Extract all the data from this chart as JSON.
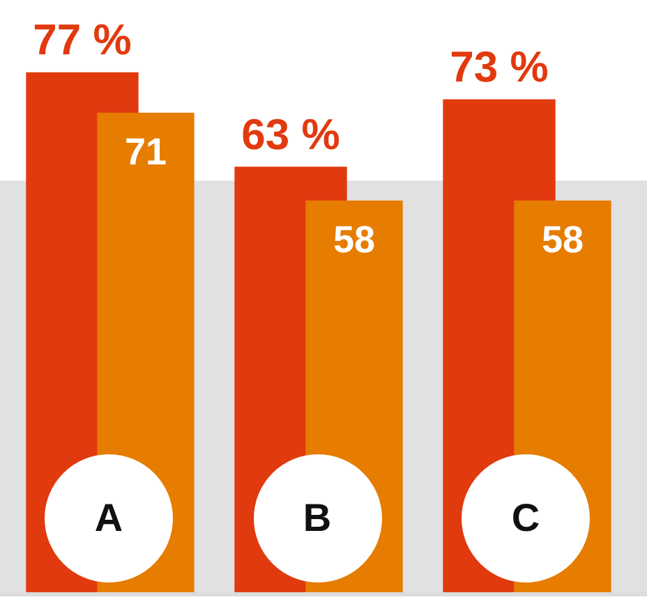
{
  "chart_data": {
    "type": "bar",
    "categories": [
      "A",
      "B",
      "C"
    ],
    "series": [
      {
        "color": "#e13a0f",
        "values": [
          77,
          63,
          73
        ],
        "value_labels": [
          "77 %",
          "63 %",
          "73 %"
        ]
      },
      {
        "color": "#e67c00",
        "values": [
          71,
          58,
          58
        ],
        "value_labels": [
          "71",
          "58",
          "58"
        ]
      }
    ],
    "bands": [
      {
        "axis": "y",
        "from": 0,
        "to": 61,
        "color": "#e1e1e1"
      }
    ],
    "grid": false,
    "legend": false,
    "tick_labels": false
  }
}
